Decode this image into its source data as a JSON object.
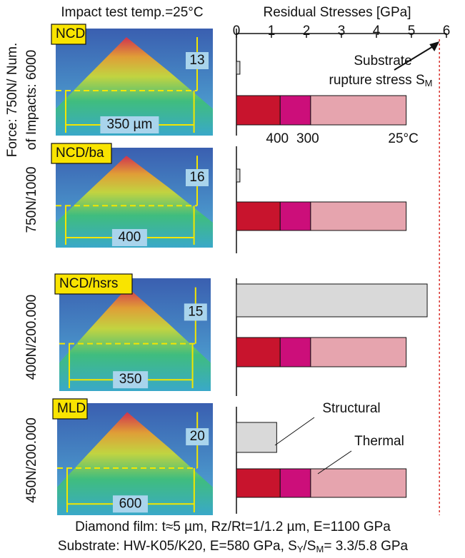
{
  "chart_data": {
    "type": "bar",
    "title": "Residual Stresses [GPa]",
    "temp_label": "Impact test temp.=25°C",
    "xlim": [
      0,
      6
    ],
    "xticks": [
      0,
      1,
      2,
      3,
      4,
      5,
      6
    ],
    "groups": [
      {
        "label": "NCD",
        "load": [
          "Force: 750N/ Num.",
          "of Impacts: 6000"
        ],
        "height": "13",
        "width": "350 µm"
      },
      {
        "label": "NCD/ba",
        "load": [
          "750N/1000"
        ],
        "height": "16",
        "width": "400"
      },
      {
        "label": "NCD/hsrs",
        "load": [
          "400N/200.000"
        ],
        "height": "15",
        "width": "350"
      },
      {
        "label": "MLD",
        "load": [
          "450N/200.000"
        ],
        "height": "20",
        "width": "600"
      }
    ],
    "structural": {
      "name": "Structural",
      "color": "#d9d9d9",
      "values": [
        0.1,
        0.1,
        5.45,
        1.15
      ]
    },
    "thermal": {
      "name": "Thermal",
      "series": [
        {
          "name": "400",
          "color": "#c8142d",
          "values": [
            1.25,
            1.25,
            1.25,
            1.25
          ]
        },
        {
          "name": "300",
          "color": "#cc0e7a",
          "values": [
            0.87,
            0.87,
            0.87,
            0.87
          ]
        },
        {
          "name": "25°C",
          "color": "#e6a4ae",
          "values": [
            2.73,
            2.73,
            2.73,
            2.73
          ]
        }
      ]
    },
    "rupture": {
      "value": 5.8,
      "label": [
        "Substrate",
        "rupture stress S",
        "M"
      ],
      "color": "#d9302c"
    },
    "caption": "Diamond film: t≈5 µm, Rz/Rt=1/1.2 µm, E=1100 GPa",
    "substrate_caption": [
      "Substrate: HW-K05/K20, E=580 GPa, S",
      "Y",
      "/S",
      "M",
      "= 3.3/5.8 GPa"
    ]
  }
}
